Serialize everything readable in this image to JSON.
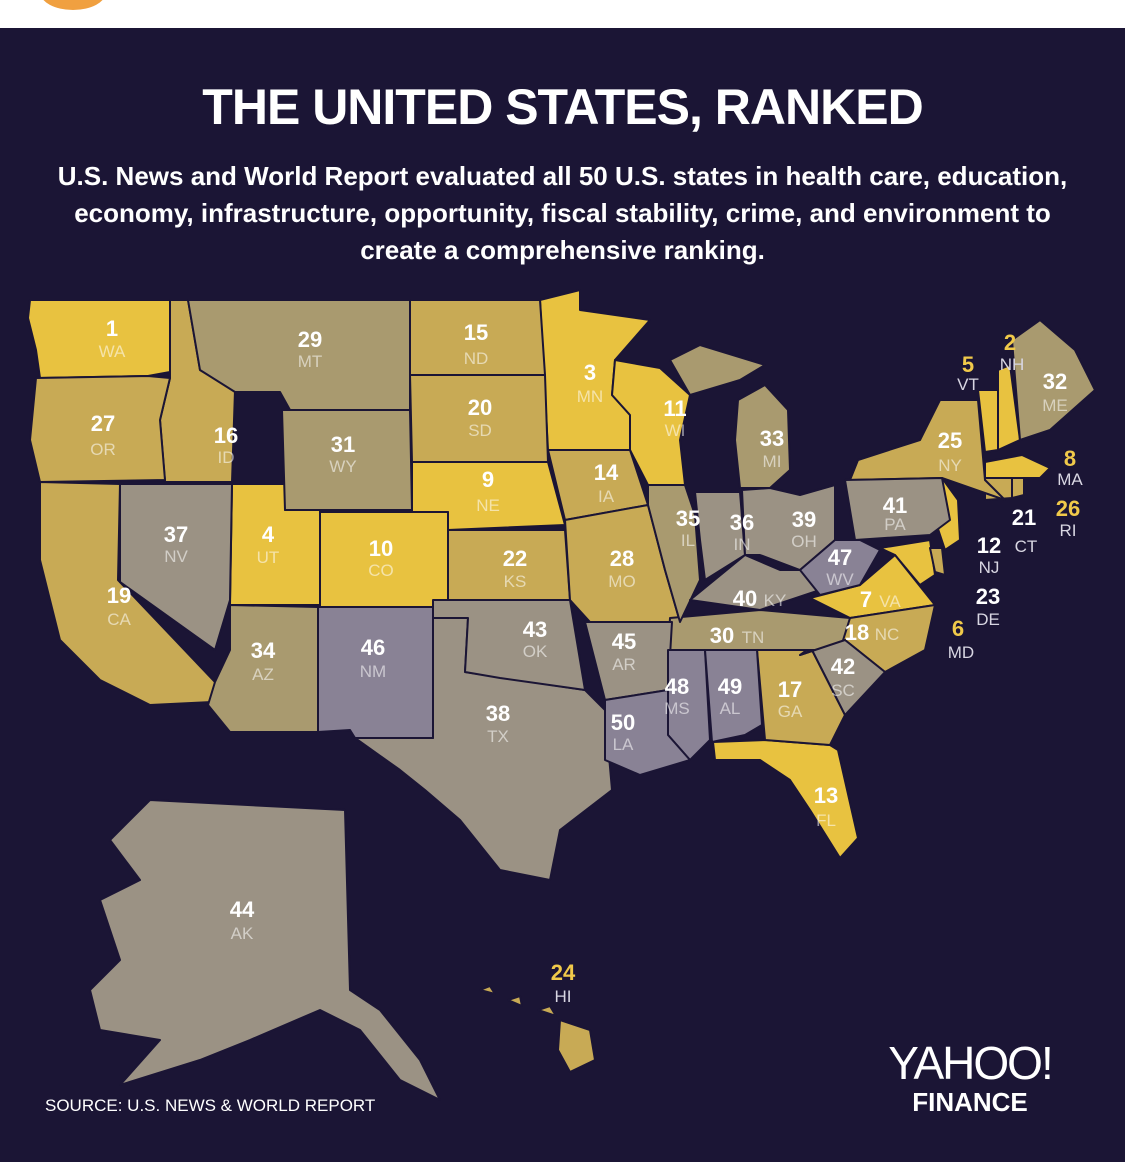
{
  "title": "THE UNITED STATES, RANKED",
  "subtitle": "U.S. News and World Report evaluated all 50 U.S. states in health care, education, economy, infrastructure, opportunity, fiscal stability, crime, and environment to create a comprehensive ranking.",
  "source": "SOURCE:  U.S. NEWS & WORLD REPORT",
  "logo": {
    "main": "YAHOO!",
    "sub": "FINANCE"
  },
  "colors": {
    "background": "#1b1535",
    "top_tier": "#e8c240",
    "upper_tier": "#c8aa55",
    "middle_tier": "#a99a6f",
    "lower_tier": "#9b9284",
    "bottom_tier": "#898295"
  },
  "states": [
    {
      "abbr": "WA",
      "rank": 1
    },
    {
      "abbr": "NH",
      "rank": 2
    },
    {
      "abbr": "MN",
      "rank": 3
    },
    {
      "abbr": "UT",
      "rank": 4
    },
    {
      "abbr": "VT",
      "rank": 5
    },
    {
      "abbr": "MD",
      "rank": 6
    },
    {
      "abbr": "VA",
      "rank": 7
    },
    {
      "abbr": "MA",
      "rank": 8
    },
    {
      "abbr": "NE",
      "rank": 9
    },
    {
      "abbr": "CO",
      "rank": 10
    },
    {
      "abbr": "WI",
      "rank": 11
    },
    {
      "abbr": "NJ",
      "rank": 12
    },
    {
      "abbr": "FL",
      "rank": 13
    },
    {
      "abbr": "IA",
      "rank": 14
    },
    {
      "abbr": "ND",
      "rank": 15
    },
    {
      "abbr": "ID",
      "rank": 16
    },
    {
      "abbr": "GA",
      "rank": 17
    },
    {
      "abbr": "NC",
      "rank": 18
    },
    {
      "abbr": "CA",
      "rank": 19
    },
    {
      "abbr": "SD",
      "rank": 20
    },
    {
      "abbr": "CT",
      "rank": 21
    },
    {
      "abbr": "KS",
      "rank": 22
    },
    {
      "abbr": "DE",
      "rank": 23
    },
    {
      "abbr": "HI",
      "rank": 24
    },
    {
      "abbr": "NY",
      "rank": 25
    },
    {
      "abbr": "RI",
      "rank": 26
    },
    {
      "abbr": "OR",
      "rank": 27
    },
    {
      "abbr": "MO",
      "rank": 28
    },
    {
      "abbr": "MT",
      "rank": 29
    },
    {
      "abbr": "TN",
      "rank": 30
    },
    {
      "abbr": "WY",
      "rank": 31
    },
    {
      "abbr": "ME",
      "rank": 32
    },
    {
      "abbr": "MI",
      "rank": 33
    },
    {
      "abbr": "AZ",
      "rank": 34
    },
    {
      "abbr": "IL",
      "rank": 35
    },
    {
      "abbr": "IN",
      "rank": 36
    },
    {
      "abbr": "NV",
      "rank": 37
    },
    {
      "abbr": "TX",
      "rank": 38
    },
    {
      "abbr": "OH",
      "rank": 39
    },
    {
      "abbr": "KY",
      "rank": 40
    },
    {
      "abbr": "PA",
      "rank": 41
    },
    {
      "abbr": "SC",
      "rank": 42
    },
    {
      "abbr": "OK",
      "rank": 43
    },
    {
      "abbr": "AK",
      "rank": 44
    },
    {
      "abbr": "AR",
      "rank": 45
    },
    {
      "abbr": "NM",
      "rank": 46
    },
    {
      "abbr": "WV",
      "rank": 47
    },
    {
      "abbr": "MS",
      "rank": 48
    },
    {
      "abbr": "AL",
      "rank": 49
    },
    {
      "abbr": "LA",
      "rank": 50
    }
  ]
}
